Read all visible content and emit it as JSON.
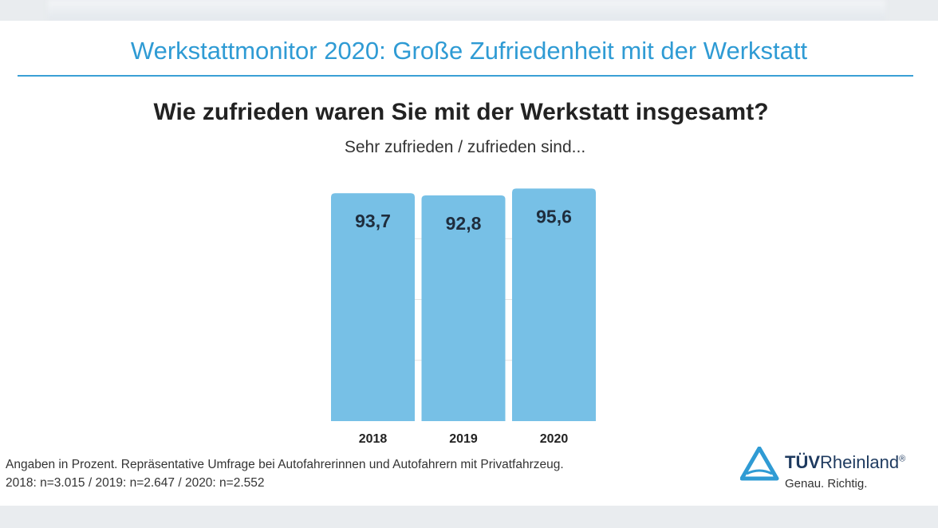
{
  "header": {
    "title": "Werkstattmonitor 2020: Große Zufriedenheit mit der Werkstatt"
  },
  "chart_data": {
    "type": "bar",
    "title": "Wie zufrieden waren Sie mit der Werkstatt insgesamt?",
    "subtitle": "Sehr zufrieden / zufrieden sind...",
    "categories": [
      "2018",
      "2019",
      "2020"
    ],
    "values": [
      93.7,
      92.8,
      95.6
    ],
    "value_labels": [
      "93,7",
      "92,8",
      "95,6"
    ],
    "ylim": [
      0,
      100
    ],
    "grid": true,
    "bar_color": "#77c0e6"
  },
  "footnote": {
    "line1": "Angaben in Prozent. Repräsentative Umfrage bei Autofahrerinnen und Autofahrern mit Privatfahrzeug.",
    "line2": "2018: n=3.015 / 2019: n=2.647 / 2020: n=2.552"
  },
  "logo": {
    "brand_bold": "TÜV",
    "brand": "Rheinland",
    "mark": "®",
    "tagline": "Genau. Richtig.",
    "color": "#2f9bd4"
  }
}
